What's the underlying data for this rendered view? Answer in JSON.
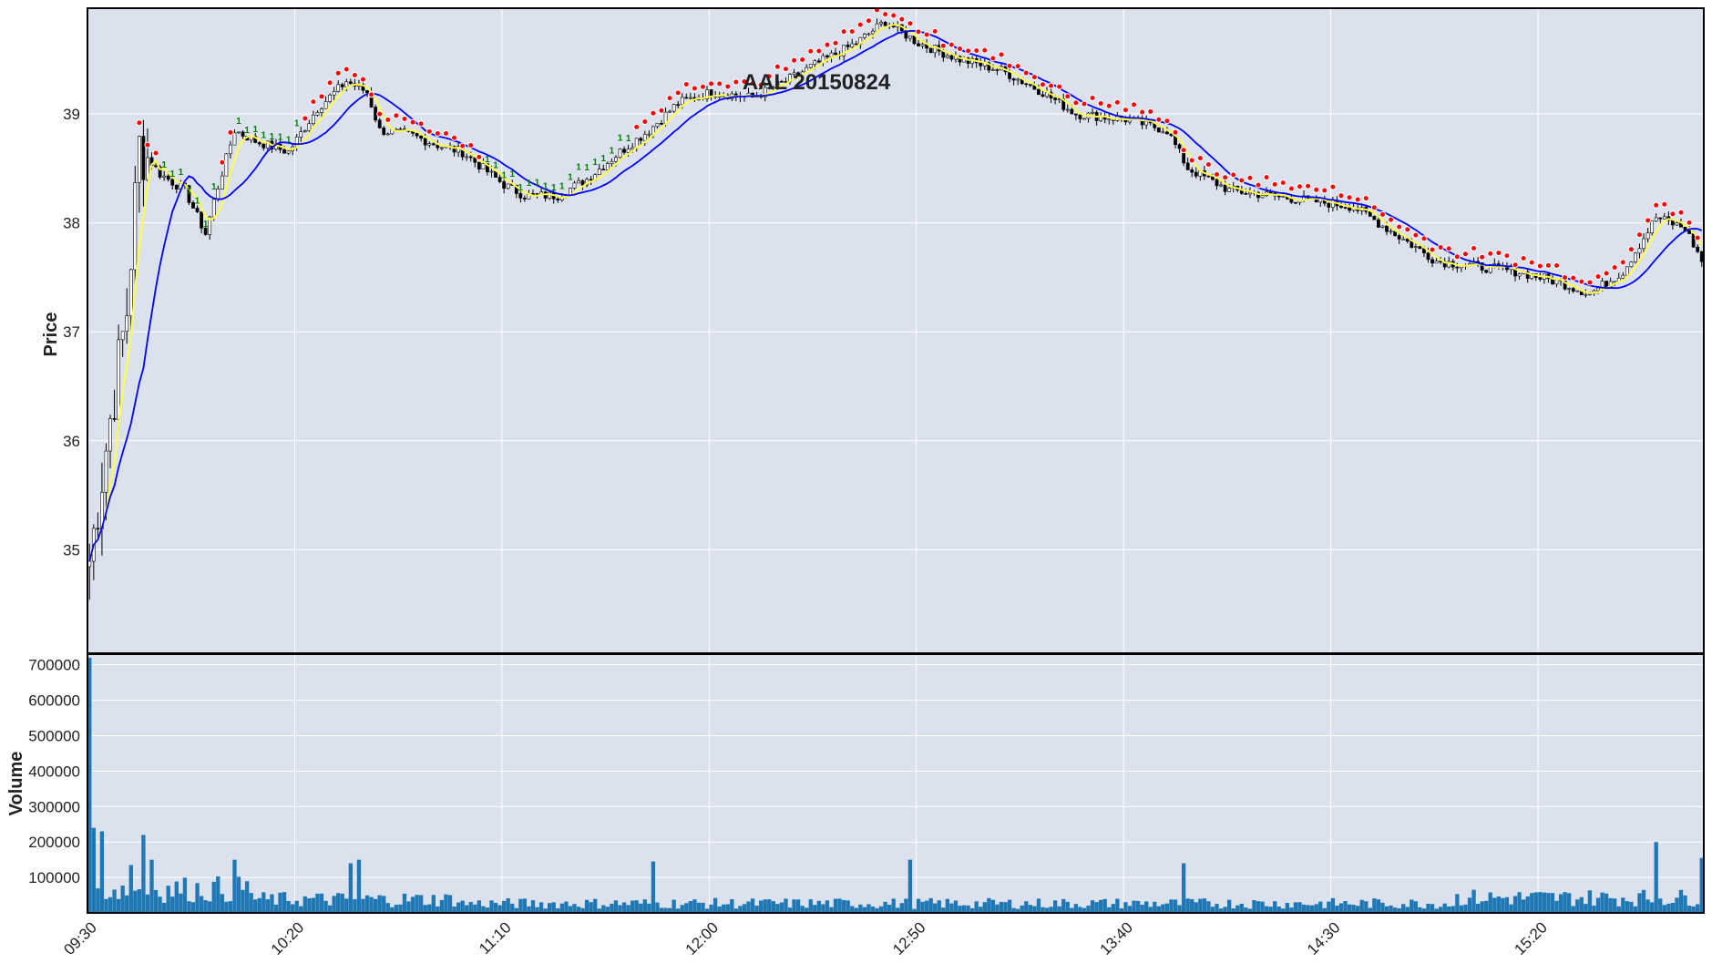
{
  "chart_data": {
    "type": "candlestick",
    "title": "AAL 20150824",
    "price_panel": {
      "ylabel": "Price",
      "yticks": [
        "35",
        "36",
        "37",
        "38",
        "39"
      ],
      "ylim": [
        34.05,
        39.97
      ],
      "overlays": [
        {
          "kind": "moving-average-fast",
          "color": "#ffff44"
        },
        {
          "kind": "moving-average-slow",
          "color": "#0000ff"
        },
        {
          "kind": "marker-up",
          "color": "#ff0000"
        },
        {
          "kind": "marker-hold",
          "color": "#008000",
          "label": "1"
        }
      ],
      "close_series": [
        {
          "t": "09:30",
          "p": 34.9
        },
        {
          "t": "09:35",
          "p": 36.2
        },
        {
          "t": "09:39",
          "p": 37.2
        },
        {
          "t": "09:42",
          "p": 38.7
        },
        {
          "t": "09:47",
          "p": 38.45
        },
        {
          "t": "09:53",
          "p": 38.3
        },
        {
          "t": "09:58",
          "p": 37.9
        },
        {
          "t": "10:00",
          "p": 38.2
        },
        {
          "t": "10:05",
          "p": 38.85
        },
        {
          "t": "10:10",
          "p": 38.75
        },
        {
          "t": "10:18",
          "p": 38.65
        },
        {
          "t": "10:25",
          "p": 39.05
        },
        {
          "t": "10:32",
          "p": 39.3
        },
        {
          "t": "10:37",
          "p": 39.2
        },
        {
          "t": "10:40",
          "p": 38.85
        },
        {
          "t": "10:48",
          "p": 38.8
        },
        {
          "t": "10:55",
          "p": 38.7
        },
        {
          "t": "11:00",
          "p": 38.65
        },
        {
          "t": "11:05",
          "p": 38.5
        },
        {
          "t": "11:10",
          "p": 38.35
        },
        {
          "t": "11:15",
          "p": 38.25
        },
        {
          "t": "11:23",
          "p": 38.25
        },
        {
          "t": "11:30",
          "p": 38.4
        },
        {
          "t": "11:38",
          "p": 38.65
        },
        {
          "t": "11:45",
          "p": 38.85
        },
        {
          "t": "11:52",
          "p": 39.1
        },
        {
          "t": "12:00",
          "p": 39.2
        },
        {
          "t": "12:10",
          "p": 39.15
        },
        {
          "t": "12:18",
          "p": 39.3
        },
        {
          "t": "12:25",
          "p": 39.45
        },
        {
          "t": "12:35",
          "p": 39.65
        },
        {
          "t": "12:42",
          "p": 39.85
        },
        {
          "t": "12:50",
          "p": 39.65
        },
        {
          "t": "13:00",
          "p": 39.5
        },
        {
          "t": "13:10",
          "p": 39.4
        },
        {
          "t": "13:20",
          "p": 39.2
        },
        {
          "t": "13:28",
          "p": 39.0
        },
        {
          "t": "13:40",
          "p": 38.95
        },
        {
          "t": "13:50",
          "p": 38.85
        },
        {
          "t": "13:55",
          "p": 38.5
        },
        {
          "t": "14:05",
          "p": 38.3
        },
        {
          "t": "14:15",
          "p": 38.25
        },
        {
          "t": "14:25",
          "p": 38.2
        },
        {
          "t": "14:35",
          "p": 38.15
        },
        {
          "t": "14:45",
          "p": 37.9
        },
        {
          "t": "14:55",
          "p": 37.65
        },
        {
          "t": "15:05",
          "p": 37.6
        },
        {
          "t": "15:15",
          "p": 37.55
        },
        {
          "t": "15:25",
          "p": 37.45
        },
        {
          "t": "15:32",
          "p": 37.35
        },
        {
          "t": "15:40",
          "p": 37.55
        },
        {
          "t": "15:48",
          "p": 38.05
        },
        {
          "t": "15:55",
          "p": 37.95
        },
        {
          "t": "15:59",
          "p": 37.65
        }
      ]
    },
    "volume_panel": {
      "ylabel": "Volume",
      "yticks": [
        "100000",
        "200000",
        "300000",
        "400000",
        "500000",
        "600000",
        "700000"
      ],
      "ylim": [
        0,
        730000
      ],
      "bar_color": "#1f77b4",
      "highlights": [
        {
          "t": "09:30",
          "v": 720000
        },
        {
          "t": "09:31",
          "v": 240000
        },
        {
          "t": "09:33",
          "v": 230000
        },
        {
          "t": "09:40",
          "v": 135000
        },
        {
          "t": "09:43",
          "v": 220000
        },
        {
          "t": "09:45",
          "v": 150000
        },
        {
          "t": "10:05",
          "v": 150000
        },
        {
          "t": "10:33",
          "v": 140000
        },
        {
          "t": "10:35",
          "v": 150000
        },
        {
          "t": "11:46",
          "v": 145000
        },
        {
          "t": "12:48",
          "v": 150000
        },
        {
          "t": "13:54",
          "v": 140000
        },
        {
          "t": "15:48",
          "v": 200000
        },
        {
          "t": "15:59",
          "v": 155000
        }
      ]
    },
    "xticks": [
      "09:30",
      "10:20",
      "11:10",
      "12:00",
      "12:50",
      "13:40",
      "14:30",
      "15:20"
    ],
    "grid": true
  }
}
